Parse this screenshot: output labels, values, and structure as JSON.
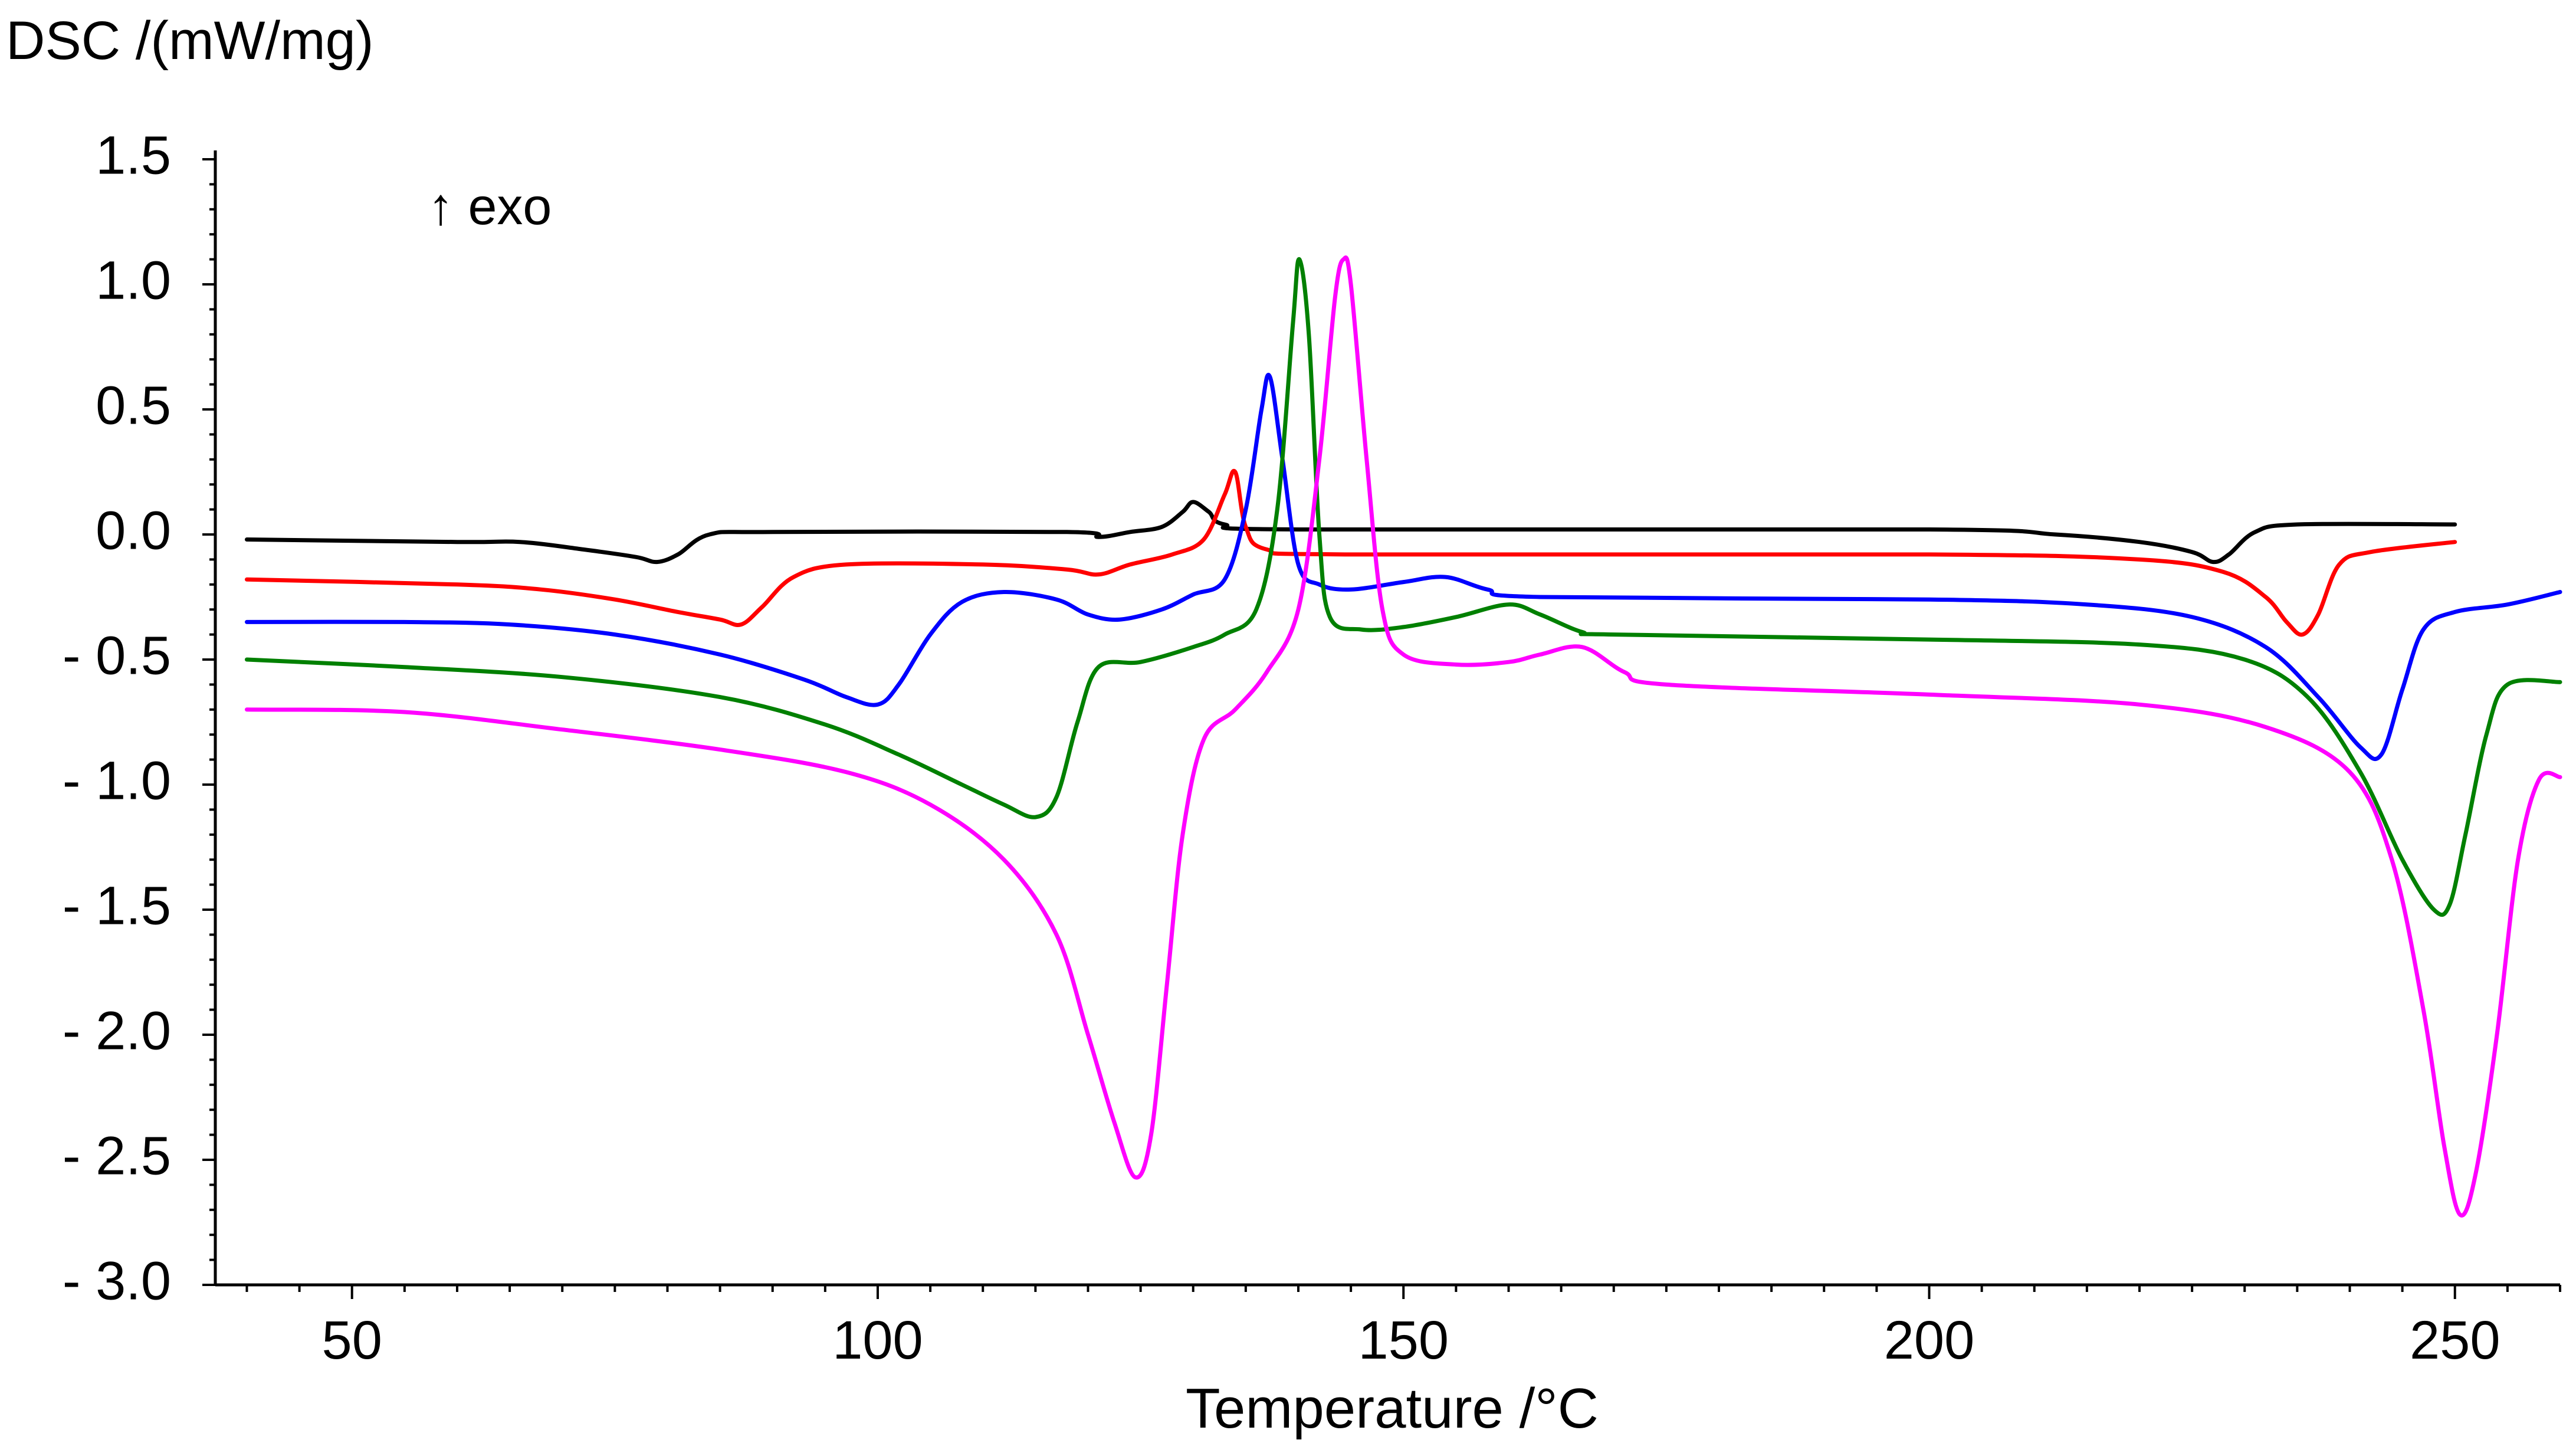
{
  "chart_data": {
    "type": "line",
    "title": "",
    "ylabel": "DSC /(mW/mg)",
    "xlabel": "Temperature /°C",
    "annotation": "↑ exo",
    "xlim": [
      37,
      260
    ],
    "ylim": [
      -3.0,
      1.5
    ],
    "x_ticks": [
      {
        "value": 50,
        "label": "50"
      },
      {
        "value": 100,
        "label": "100"
      },
      {
        "value": 150,
        "label": "150"
      },
      {
        "value": 200,
        "label": "200"
      },
      {
        "value": 250,
        "label": "250"
      }
    ],
    "y_ticks": [
      {
        "value": 1.5,
        "label": "1.5"
      },
      {
        "value": 1.0,
        "label": "1.0"
      },
      {
        "value": 0.5,
        "label": "0.5"
      },
      {
        "value": 0.0,
        "label": "0.0"
      },
      {
        "value": -0.5,
        "label": "- 0.5"
      },
      {
        "value": -1.0,
        "label": "- 1.0"
      },
      {
        "value": -1.5,
        "label": "- 1.5"
      },
      {
        "value": -2.0,
        "label": "- 2.0"
      },
      {
        "value": -2.5,
        "label": "- 2.5"
      },
      {
        "value": -3.0,
        "label": "- 3.0"
      }
    ],
    "series": [
      {
        "name": "black",
        "color": "#000000",
        "points": [
          [
            40,
            -0.02
          ],
          [
            60,
            -0.03
          ],
          [
            66,
            -0.03
          ],
          [
            72,
            -0.06
          ],
          [
            77,
            -0.09
          ],
          [
            79,
            -0.11
          ],
          [
            81,
            -0.08
          ],
          [
            84,
            0.0
          ],
          [
            90,
            0.01
          ],
          [
            118,
            0.01
          ],
          [
            121,
            -0.01
          ],
          [
            124,
            0.01
          ],
          [
            127,
            0.03
          ],
          [
            129,
            0.09
          ],
          [
            130,
            0.13
          ],
          [
            131.5,
            0.09
          ],
          [
            133,
            0.04
          ],
          [
            140,
            0.02
          ],
          [
            200,
            0.02
          ],
          [
            212,
            0.0
          ],
          [
            220,
            -0.03
          ],
          [
            225,
            -0.07
          ],
          [
            227,
            -0.11
          ],
          [
            228.5,
            -0.08
          ],
          [
            231,
            0.01
          ],
          [
            235,
            0.04
          ],
          [
            250,
            0.04
          ]
        ]
      },
      {
        "name": "red",
        "color": "#ff0000",
        "points": [
          [
            40,
            -0.18
          ],
          [
            60,
            -0.2
          ],
          [
            68,
            -0.22
          ],
          [
            75,
            -0.26
          ],
          [
            81,
            -0.31
          ],
          [
            85,
            -0.34
          ],
          [
            87,
            -0.36
          ],
          [
            89,
            -0.29
          ],
          [
            92,
            -0.17
          ],
          [
            97,
            -0.12
          ],
          [
            110,
            -0.12
          ],
          [
            118,
            -0.14
          ],
          [
            121,
            -0.16
          ],
          [
            124,
            -0.12
          ],
          [
            128,
            -0.08
          ],
          [
            131,
            -0.02
          ],
          [
            133,
            0.16
          ],
          [
            134,
            0.25
          ],
          [
            135,
            0.03
          ],
          [
            137,
            -0.06
          ],
          [
            145,
            -0.08
          ],
          [
            200,
            -0.08
          ],
          [
            220,
            -0.1
          ],
          [
            228,
            -0.15
          ],
          [
            232,
            -0.25
          ],
          [
            234,
            -0.35
          ],
          [
            235.5,
            -0.4
          ],
          [
            237,
            -0.32
          ],
          [
            239,
            -0.12
          ],
          [
            242,
            -0.07
          ],
          [
            250,
            -0.03
          ]
        ]
      },
      {
        "name": "blue",
        "color": "#0000ff",
        "points": [
          [
            40,
            -0.35
          ],
          [
            55,
            -0.35
          ],
          [
            65,
            -0.36
          ],
          [
            75,
            -0.4
          ],
          [
            85,
            -0.48
          ],
          [
            93,
            -0.58
          ],
          [
            97,
            -0.65
          ],
          [
            100,
            -0.68
          ],
          [
            102,
            -0.6
          ],
          [
            105,
            -0.4
          ],
          [
            108,
            -0.27
          ],
          [
            112,
            -0.23
          ],
          [
            117,
            -0.26
          ],
          [
            120,
            -0.32
          ],
          [
            123,
            -0.34
          ],
          [
            127,
            -0.3
          ],
          [
            130,
            -0.24
          ],
          [
            133,
            -0.18
          ],
          [
            135,
            0.1
          ],
          [
            136.5,
            0.5
          ],
          [
            137.3,
            0.63
          ],
          [
            138.5,
            0.3
          ],
          [
            140,
            -0.12
          ],
          [
            142,
            -0.2
          ],
          [
            145,
            -0.22
          ],
          [
            150,
            -0.19
          ],
          [
            154,
            -0.17
          ],
          [
            158,
            -0.22
          ],
          [
            163,
            -0.25
          ],
          [
            200,
            -0.26
          ],
          [
            215,
            -0.28
          ],
          [
            225,
            -0.33
          ],
          [
            232,
            -0.45
          ],
          [
            237,
            -0.65
          ],
          [
            241,
            -0.85
          ],
          [
            243,
            -0.88
          ],
          [
            245,
            -0.62
          ],
          [
            247,
            -0.38
          ],
          [
            250,
            -0.31
          ],
          [
            255,
            -0.28
          ],
          [
            260,
            -0.23
          ]
        ]
      },
      {
        "name": "green",
        "color": "#008000",
        "points": [
          [
            40,
            -0.5
          ],
          [
            55,
            -0.53
          ],
          [
            70,
            -0.57
          ],
          [
            85,
            -0.65
          ],
          [
            95,
            -0.76
          ],
          [
            102,
            -0.88
          ],
          [
            108,
            -1.0
          ],
          [
            112,
            -1.08
          ],
          [
            115,
            -1.13
          ],
          [
            117,
            -1.05
          ],
          [
            119,
            -0.75
          ],
          [
            121,
            -0.53
          ],
          [
            125,
            -0.51
          ],
          [
            130,
            -0.45
          ],
          [
            133,
            -0.4
          ],
          [
            136,
            -0.3
          ],
          [
            138,
            0.1
          ],
          [
            139.5,
            0.85
          ],
          [
            140.1,
            1.1
          ],
          [
            141,
            0.8
          ],
          [
            142,
            0.0
          ],
          [
            143,
            -0.33
          ],
          [
            146,
            -0.38
          ],
          [
            150,
            -0.37
          ],
          [
            155,
            -0.33
          ],
          [
            160,
            -0.28
          ],
          [
            163,
            -0.32
          ],
          [
            167,
            -0.39
          ],
          [
            170,
            -0.4
          ],
          [
            200,
            -0.42
          ],
          [
            220,
            -0.44
          ],
          [
            230,
            -0.5
          ],
          [
            236,
            -0.65
          ],
          [
            241,
            -0.95
          ],
          [
            245,
            -1.3
          ],
          [
            248,
            -1.5
          ],
          [
            249.5,
            -1.48
          ],
          [
            251,
            -1.2
          ],
          [
            253,
            -0.8
          ],
          [
            255,
            -0.6
          ],
          [
            260,
            -0.59
          ]
        ]
      },
      {
        "name": "magenta",
        "color": "#ff00ff",
        "points": [
          [
            40,
            -0.7
          ],
          [
            55,
            -0.71
          ],
          [
            70,
            -0.78
          ],
          [
            85,
            -0.86
          ],
          [
            97,
            -0.95
          ],
          [
            105,
            -1.08
          ],
          [
            112,
            -1.3
          ],
          [
            117,
            -1.6
          ],
          [
            120,
            -2.0
          ],
          [
            122.5,
            -2.35
          ],
          [
            124.5,
            -2.57
          ],
          [
            126,
            -2.4
          ],
          [
            127.5,
            -1.8
          ],
          [
            129,
            -1.2
          ],
          [
            131,
            -0.82
          ],
          [
            134,
            -0.7
          ],
          [
            137,
            -0.55
          ],
          [
            140,
            -0.3
          ],
          [
            142,
            0.3
          ],
          [
            143.5,
            0.95
          ],
          [
            144.3,
            1.1
          ],
          [
            145,
            1.0
          ],
          [
            146.5,
            0.3
          ],
          [
            148,
            -0.3
          ],
          [
            150,
            -0.48
          ],
          [
            155,
            -0.52
          ],
          [
            160,
            -0.51
          ],
          [
            163,
            -0.48
          ],
          [
            167,
            -0.45
          ],
          [
            171,
            -0.55
          ],
          [
            175,
            -0.6
          ],
          [
            200,
            -0.64
          ],
          [
            220,
            -0.68
          ],
          [
            232,
            -0.77
          ],
          [
            240,
            -0.95
          ],
          [
            244,
            -1.3
          ],
          [
            247,
            -1.9
          ],
          [
            249,
            -2.45
          ],
          [
            250.5,
            -2.72
          ],
          [
            252,
            -2.55
          ],
          [
            254,
            -2.0
          ],
          [
            256,
            -1.3
          ],
          [
            258,
            -0.98
          ],
          [
            260,
            -0.97
          ]
        ]
      }
    ]
  }
}
